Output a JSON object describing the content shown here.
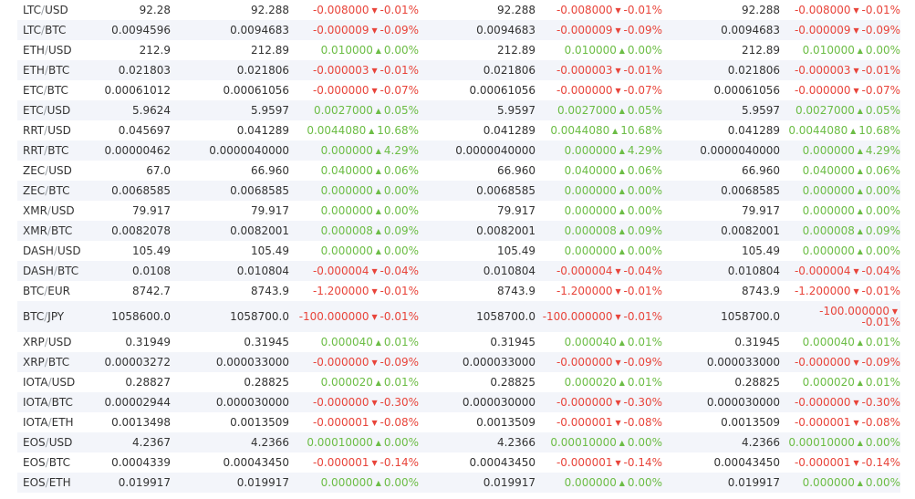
{
  "rows": [
    {
      "base": "LTC",
      "quote": "USD",
      "last": "92.28",
      "g1": {
        "price": "92.288",
        "chg": "-0.008000",
        "pct": "-0.01%",
        "dir": "down"
      },
      "g2": {
        "price": "92.288",
        "chg": "-0.008000",
        "pct": "-0.01%",
        "dir": "down"
      },
      "g3": {
        "price": "92.288",
        "chg": "-0.008000",
        "pct": "-0.01%",
        "dir": "down"
      }
    },
    {
      "base": "LTC",
      "quote": "BTC",
      "last": "0.0094596",
      "g1": {
        "price": "0.0094683",
        "chg": "-0.000009",
        "pct": "-0.09%",
        "dir": "down"
      },
      "g2": {
        "price": "0.0094683",
        "chg": "-0.000009",
        "pct": "-0.09%",
        "dir": "down"
      },
      "g3": {
        "price": "0.0094683",
        "chg": "-0.000009",
        "pct": "-0.09%",
        "dir": "down"
      }
    },
    {
      "base": "ETH",
      "quote": "USD",
      "last": "212.9",
      "g1": {
        "price": "212.89",
        "chg": "0.010000",
        "pct": "0.00%",
        "dir": "up"
      },
      "g2": {
        "price": "212.89",
        "chg": "0.010000",
        "pct": "0.00%",
        "dir": "up"
      },
      "g3": {
        "price": "212.89",
        "chg": "0.010000",
        "pct": "0.00%",
        "dir": "up"
      }
    },
    {
      "base": "ETH",
      "quote": "BTC",
      "last": "0.021803",
      "g1": {
        "price": "0.021806",
        "chg": "-0.000003",
        "pct": "-0.01%",
        "dir": "down"
      },
      "g2": {
        "price": "0.021806",
        "chg": "-0.000003",
        "pct": "-0.01%",
        "dir": "down"
      },
      "g3": {
        "price": "0.021806",
        "chg": "-0.000003",
        "pct": "-0.01%",
        "dir": "down"
      }
    },
    {
      "base": "ETC",
      "quote": "BTC",
      "last": "0.00061012",
      "g1": {
        "price": "0.00061056",
        "chg": "-0.000000",
        "pct": "-0.07%",
        "dir": "down"
      },
      "g2": {
        "price": "0.00061056",
        "chg": "-0.000000",
        "pct": "-0.07%",
        "dir": "down"
      },
      "g3": {
        "price": "0.00061056",
        "chg": "-0.000000",
        "pct": "-0.07%",
        "dir": "down"
      }
    },
    {
      "base": "ETC",
      "quote": "USD",
      "last": "5.9624",
      "g1": {
        "price": "5.9597",
        "chg": "0.0027000",
        "pct": "0.05%",
        "dir": "up"
      },
      "g2": {
        "price": "5.9597",
        "chg": "0.0027000",
        "pct": "0.05%",
        "dir": "up"
      },
      "g3": {
        "price": "5.9597",
        "chg": "0.0027000",
        "pct": "0.05%",
        "dir": "up"
      }
    },
    {
      "base": "RRT",
      "quote": "USD",
      "last": "0.045697",
      "g1": {
        "price": "0.041289",
        "chg": "0.0044080",
        "pct": "10.68%",
        "dir": "up"
      },
      "g2": {
        "price": "0.041289",
        "chg": "0.0044080",
        "pct": "10.68%",
        "dir": "up"
      },
      "g3": {
        "price": "0.041289",
        "chg": "0.0044080",
        "pct": "10.68%",
        "dir": "up"
      }
    },
    {
      "base": "RRT",
      "quote": "BTC",
      "last": "0.00000462",
      "g1": {
        "price": "0.0000040000",
        "chg": "0.000000",
        "pct": "4.29%",
        "dir": "up"
      },
      "g2": {
        "price": "0.0000040000",
        "chg": "0.000000",
        "pct": "4.29%",
        "dir": "up"
      },
      "g3": {
        "price": "0.0000040000",
        "chg": "0.000000",
        "pct": "4.29%",
        "dir": "up"
      }
    },
    {
      "base": "ZEC",
      "quote": "USD",
      "last": "67.0",
      "g1": {
        "price": "66.960",
        "chg": "0.040000",
        "pct": "0.06%",
        "dir": "up"
      },
      "g2": {
        "price": "66.960",
        "chg": "0.040000",
        "pct": "0.06%",
        "dir": "up"
      },
      "g3": {
        "price": "66.960",
        "chg": "0.040000",
        "pct": "0.06%",
        "dir": "up"
      }
    },
    {
      "base": "ZEC",
      "quote": "BTC",
      "last": "0.0068585",
      "g1": {
        "price": "0.0068585",
        "chg": "0.000000",
        "pct": "0.00%",
        "dir": "up"
      },
      "g2": {
        "price": "0.0068585",
        "chg": "0.000000",
        "pct": "0.00%",
        "dir": "up"
      },
      "g3": {
        "price": "0.0068585",
        "chg": "0.000000",
        "pct": "0.00%",
        "dir": "up"
      }
    },
    {
      "base": "XMR",
      "quote": "USD",
      "last": "79.917",
      "g1": {
        "price": "79.917",
        "chg": "0.000000",
        "pct": "0.00%",
        "dir": "up"
      },
      "g2": {
        "price": "79.917",
        "chg": "0.000000",
        "pct": "0.00%",
        "dir": "up"
      },
      "g3": {
        "price": "79.917",
        "chg": "0.000000",
        "pct": "0.00%",
        "dir": "up"
      }
    },
    {
      "base": "XMR",
      "quote": "BTC",
      "last": "0.0082078",
      "g1": {
        "price": "0.0082001",
        "chg": "0.000008",
        "pct": "0.09%",
        "dir": "up"
      },
      "g2": {
        "price": "0.0082001",
        "chg": "0.000008",
        "pct": "0.09%",
        "dir": "up"
      },
      "g3": {
        "price": "0.0082001",
        "chg": "0.000008",
        "pct": "0.09%",
        "dir": "up"
      }
    },
    {
      "base": "DASH",
      "quote": "USD",
      "last": "105.49",
      "g1": {
        "price": "105.49",
        "chg": "0.000000",
        "pct": "0.00%",
        "dir": "up"
      },
      "g2": {
        "price": "105.49",
        "chg": "0.000000",
        "pct": "0.00%",
        "dir": "up"
      },
      "g3": {
        "price": "105.49",
        "chg": "0.000000",
        "pct": "0.00%",
        "dir": "up"
      }
    },
    {
      "base": "DASH",
      "quote": "BTC",
      "last": "0.0108",
      "g1": {
        "price": "0.010804",
        "chg": "-0.000004",
        "pct": "-0.04%",
        "dir": "down"
      },
      "g2": {
        "price": "0.010804",
        "chg": "-0.000004",
        "pct": "-0.04%",
        "dir": "down"
      },
      "g3": {
        "price": "0.010804",
        "chg": "-0.000004",
        "pct": "-0.04%",
        "dir": "down"
      }
    },
    {
      "base": "BTC",
      "quote": "EUR",
      "last": "8742.7",
      "g1": {
        "price": "8743.9",
        "chg": "-1.200000",
        "pct": "-0.01%",
        "dir": "down"
      },
      "g2": {
        "price": "8743.9",
        "chg": "-1.200000",
        "pct": "-0.01%",
        "dir": "down"
      },
      "g3": {
        "price": "8743.9",
        "chg": "-1.200000",
        "pct": "-0.01%",
        "dir": "down"
      }
    },
    {
      "base": "BTC",
      "quote": "JPY",
      "last": "1058600.0",
      "tall": true,
      "g1": {
        "price": "1058700.0",
        "chg": "-100.000000",
        "pct": "-0.01%",
        "dir": "down"
      },
      "g2": {
        "price": "1058700.0",
        "chg": "-100.000000",
        "pct": "-0.01%",
        "dir": "down"
      },
      "g3": {
        "price": "1058700.0",
        "chg": "-100.000000",
        "pct": "-0.01%",
        "dir": "down"
      }
    },
    {
      "base": "XRP",
      "quote": "USD",
      "last": "0.31949",
      "g1": {
        "price": "0.31945",
        "chg": "0.000040",
        "pct": "0.01%",
        "dir": "up"
      },
      "g2": {
        "price": "0.31945",
        "chg": "0.000040",
        "pct": "0.01%",
        "dir": "up"
      },
      "g3": {
        "price": "0.31945",
        "chg": "0.000040",
        "pct": "0.01%",
        "dir": "up"
      }
    },
    {
      "base": "XRP",
      "quote": "BTC",
      "last": "0.00003272",
      "g1": {
        "price": "0.000033000",
        "chg": "-0.000000",
        "pct": "-0.09%",
        "dir": "down"
      },
      "g2": {
        "price": "0.000033000",
        "chg": "-0.000000",
        "pct": "-0.09%",
        "dir": "down"
      },
      "g3": {
        "price": "0.000033000",
        "chg": "-0.000000",
        "pct": "-0.09%",
        "dir": "down"
      }
    },
    {
      "base": "IOTA",
      "quote": "USD",
      "last": "0.28827",
      "g1": {
        "price": "0.28825",
        "chg": "0.000020",
        "pct": "0.01%",
        "dir": "up"
      },
      "g2": {
        "price": "0.28825",
        "chg": "0.000020",
        "pct": "0.01%",
        "dir": "up"
      },
      "g3": {
        "price": "0.28825",
        "chg": "0.000020",
        "pct": "0.01%",
        "dir": "up"
      }
    },
    {
      "base": "IOTA",
      "quote": "BTC",
      "last": "0.00002944",
      "g1": {
        "price": "0.000030000",
        "chg": "-0.000000",
        "pct": "-0.30%",
        "dir": "down"
      },
      "g2": {
        "price": "0.000030000",
        "chg": "-0.000000",
        "pct": "-0.30%",
        "dir": "down"
      },
      "g3": {
        "price": "0.000030000",
        "chg": "-0.000000",
        "pct": "-0.30%",
        "dir": "down"
      }
    },
    {
      "base": "IOTA",
      "quote": "ETH",
      "last": "0.0013498",
      "g1": {
        "price": "0.0013509",
        "chg": "-0.000001",
        "pct": "-0.08%",
        "dir": "down"
      },
      "g2": {
        "price": "0.0013509",
        "chg": "-0.000001",
        "pct": "-0.08%",
        "dir": "down"
      },
      "g3": {
        "price": "0.0013509",
        "chg": "-0.000001",
        "pct": "-0.08%",
        "dir": "down"
      }
    },
    {
      "base": "EOS",
      "quote": "USD",
      "last": "4.2367",
      "g1": {
        "price": "4.2366",
        "chg": "0.00010000",
        "pct": "0.00%",
        "dir": "up"
      },
      "g2": {
        "price": "4.2366",
        "chg": "0.00010000",
        "pct": "0.00%",
        "dir": "up"
      },
      "g3": {
        "price": "4.2366",
        "chg": "0.00010000",
        "pct": "0.00%",
        "dir": "up"
      }
    },
    {
      "base": "EOS",
      "quote": "BTC",
      "last": "0.0004339",
      "g1": {
        "price": "0.00043450",
        "chg": "-0.000001",
        "pct": "-0.14%",
        "dir": "down"
      },
      "g2": {
        "price": "0.00043450",
        "chg": "-0.000001",
        "pct": "-0.14%",
        "dir": "down"
      },
      "g3": {
        "price": "0.00043450",
        "chg": "-0.000001",
        "pct": "-0.14%",
        "dir": "down"
      }
    },
    {
      "base": "EOS",
      "quote": "ETH",
      "last": "0.019917",
      "g1": {
        "price": "0.019917",
        "chg": "0.000000",
        "pct": "0.00%",
        "dir": "up"
      },
      "g2": {
        "price": "0.019917",
        "chg": "0.000000",
        "pct": "0.00%",
        "dir": "up"
      },
      "g3": {
        "price": "0.019917",
        "chg": "0.000000",
        "pct": "0.00%",
        "dir": "up"
      }
    }
  ],
  "colors": {
    "up": "#6cbd45",
    "down": "#e8443a",
    "row_alt": "#f3f5fa",
    "separator": "#9aa0a6"
  },
  "icons": {
    "up": "caret-up-icon",
    "down": "caret-down-icon"
  }
}
